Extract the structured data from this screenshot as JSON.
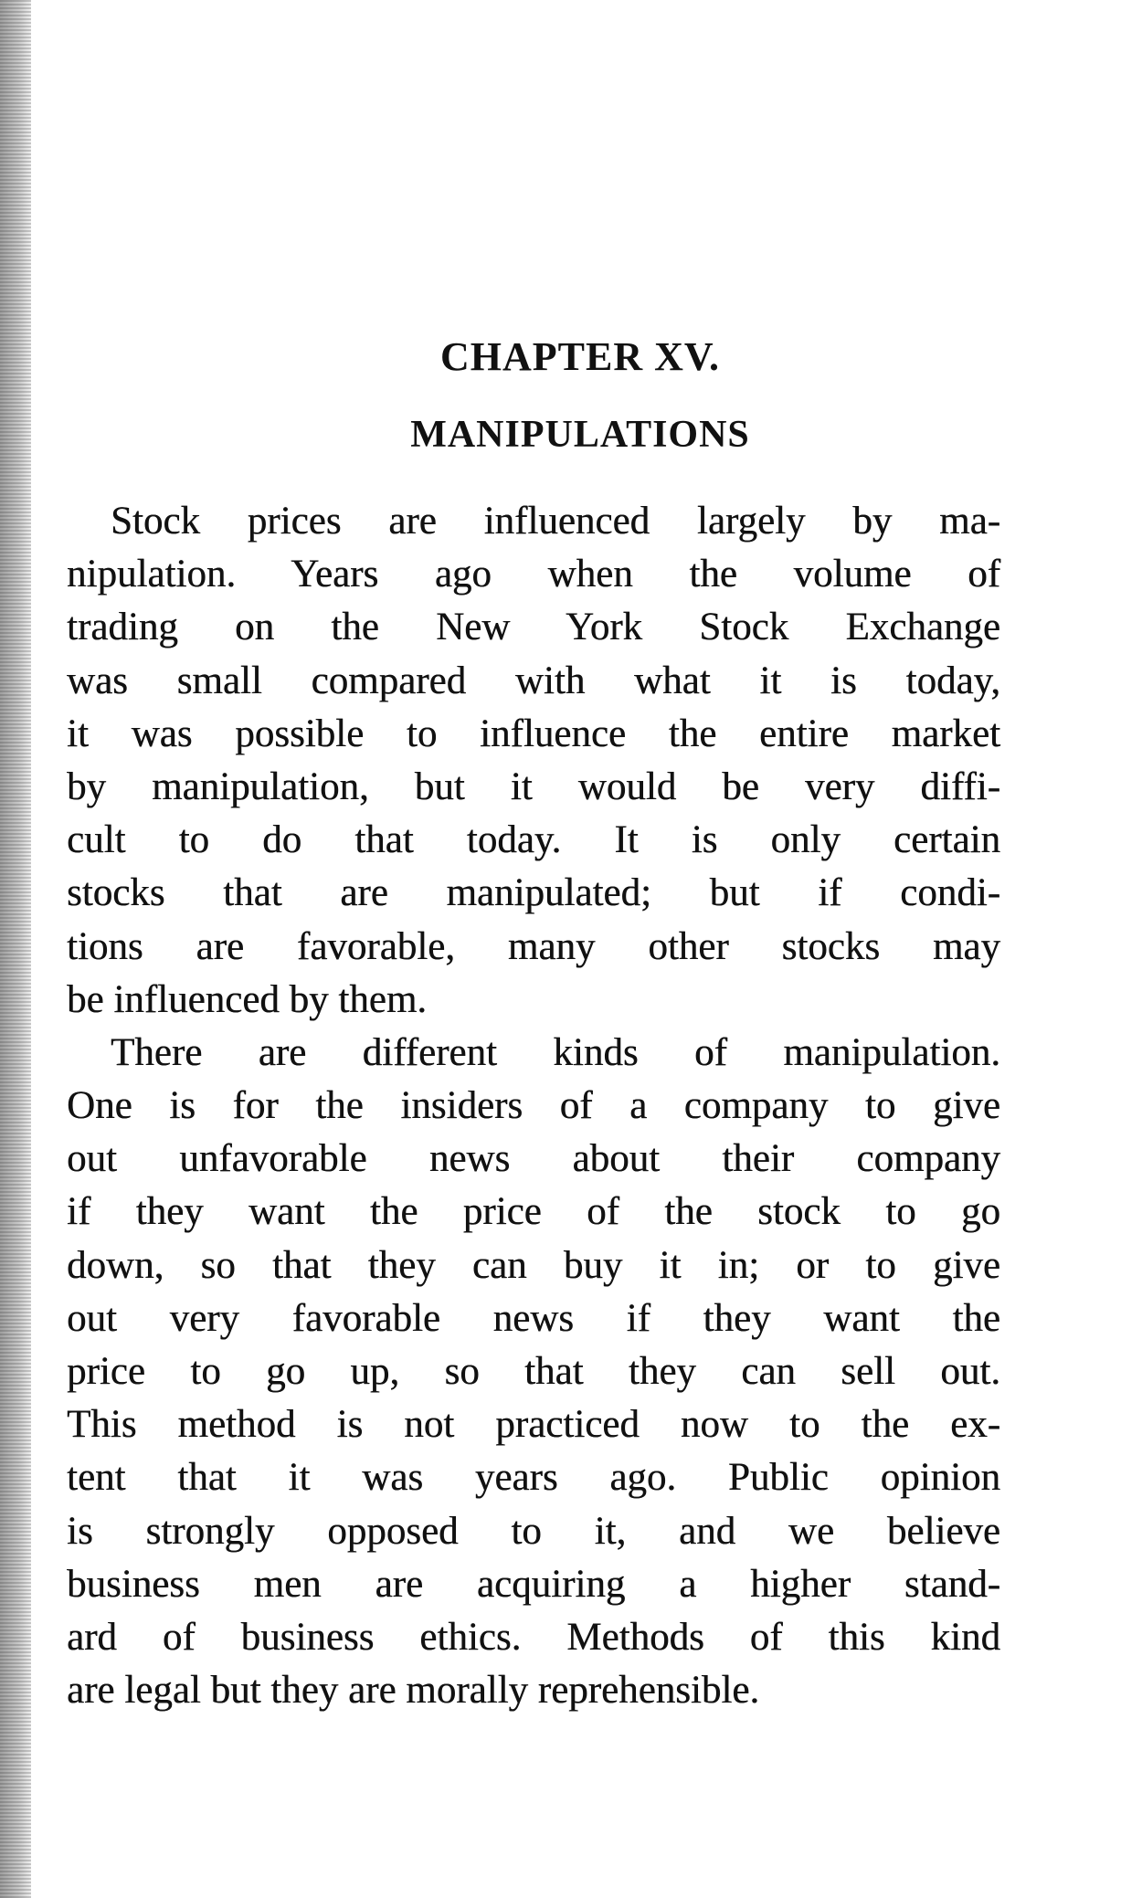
{
  "chapter": {
    "number": "CHAPTER XV.",
    "title": "MANIPULATIONS"
  },
  "paragraphs": [
    {
      "lines": [
        "Stock prices are influenced largely by ma-",
        "nipulation. Years ago when the volume of",
        "trading on the New York Stock Exchange",
        "was small compared with what it is today,",
        "it was possible to influence the entire market",
        "by manipulation, but it would be very diffi-",
        "cult to do that today. It is only certain",
        "stocks that are manipulated; but if condi-",
        "tions are favorable, many other stocks may",
        "be influenced by them."
      ]
    },
    {
      "lines": [
        "There are different kinds of manipulation.",
        "One is for the insiders of a company to give",
        "out unfavorable news about their company",
        "if they want the price of the stock to go",
        "down, so that they can buy it in; or to give",
        "out very favorable news if they want the",
        "price to go up, so that they can sell out.",
        "This method is not practiced now to the ex-",
        "tent that it was years ago. Public opinion",
        "is strongly opposed to it, and we believe",
        "business men are acquiring a higher stand-",
        "ard of business ethics. Methods of this kind",
        "are legal but they are morally reprehensible."
      ]
    }
  ]
}
